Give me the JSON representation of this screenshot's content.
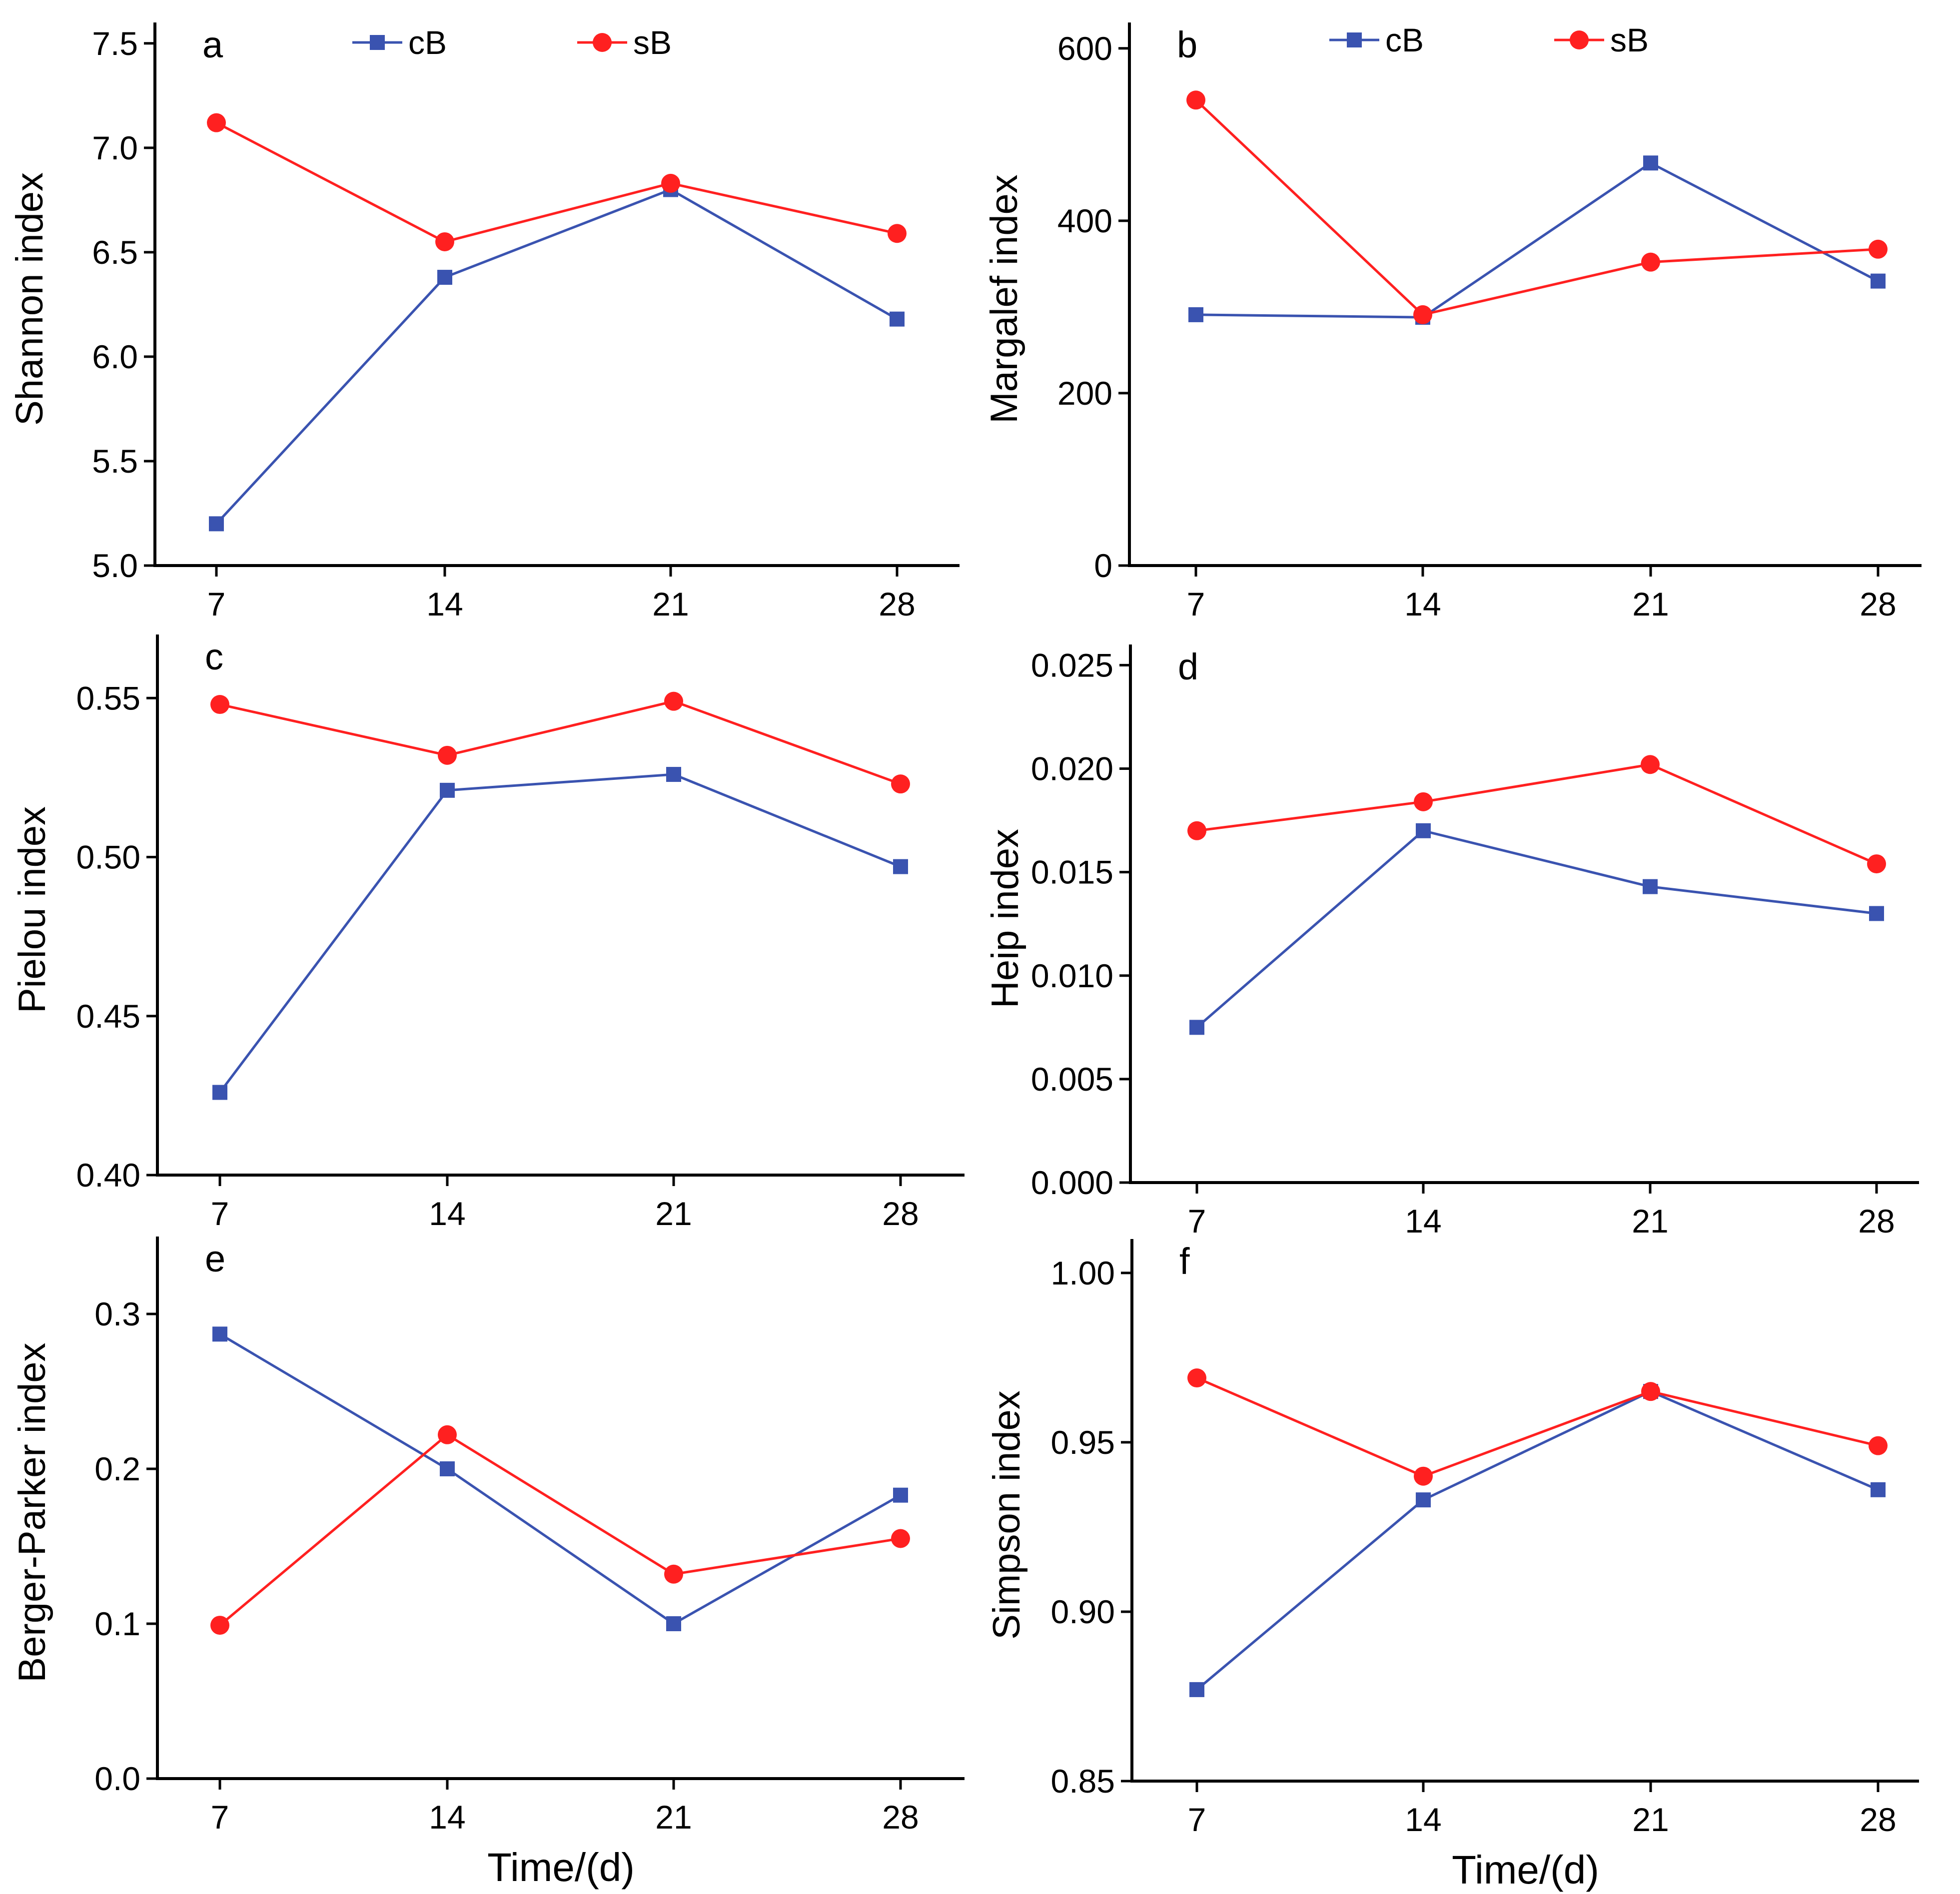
{
  "figure": {
    "series_colors": {
      "cB": "#3a53b0",
      "sB": "#ff2020"
    },
    "axis_color": "#000000"
  },
  "chart_data": [
    {
      "panel": "a",
      "type": "line",
      "ylabel": "Shannon index",
      "xlabel": "",
      "x": [
        7,
        14,
        21,
        28
      ],
      "xticks": [
        "7",
        "14",
        "21",
        "28"
      ],
      "ylim": [
        5.0,
        7.6
      ],
      "yticks": [
        "5.0",
        "5.5",
        "6.0",
        "6.5",
        "7.0",
        "7.5"
      ],
      "yticks_values": [
        5.0,
        5.5,
        6.0,
        6.5,
        7.0,
        7.5
      ],
      "legend": [
        "cB",
        "sB"
      ],
      "legend_position": "top",
      "series": [
        {
          "name": "cB",
          "marker": "square",
          "values": [
            5.2,
            6.38,
            6.8,
            6.18
          ]
        },
        {
          "name": "sB",
          "marker": "circle",
          "values": [
            7.12,
            6.55,
            6.83,
            6.59
          ]
        }
      ]
    },
    {
      "panel": "b",
      "type": "line",
      "ylabel": "Margalef index",
      "xlabel": "",
      "x": [
        7,
        14,
        21,
        28
      ],
      "xticks": [
        "7",
        "14",
        "21",
        "28"
      ],
      "ylim": [
        0,
        630
      ],
      "yticks": [
        "0",
        "200",
        "400",
        "600"
      ],
      "yticks_values": [
        0,
        200,
        400,
        600
      ],
      "legend": [
        "cB",
        "sB"
      ],
      "legend_position": "top",
      "series": [
        {
          "name": "cB",
          "marker": "square",
          "values": [
            291,
            288,
            467,
            330
          ]
        },
        {
          "name": "sB",
          "marker": "circle",
          "values": [
            540,
            291,
            352,
            367
          ]
        }
      ]
    },
    {
      "panel": "c",
      "type": "line",
      "ylabel": "Pielou index",
      "xlabel": "",
      "x": [
        7,
        14,
        21,
        28
      ],
      "xticks": [
        "7",
        "14",
        "21",
        "28"
      ],
      "ylim": [
        0.4,
        0.57
      ],
      "yticks": [
        "0.40",
        "0.45",
        "0.50",
        "0.55"
      ],
      "yticks_values": [
        0.4,
        0.45,
        0.5,
        0.55
      ],
      "series": [
        {
          "name": "cB",
          "marker": "square",
          "values": [
            0.426,
            0.521,
            0.526,
            0.497
          ]
        },
        {
          "name": "sB",
          "marker": "circle",
          "values": [
            0.548,
            0.532,
            0.549,
            0.523
          ]
        }
      ]
    },
    {
      "panel": "d",
      "type": "line",
      "ylabel": "Heip index",
      "xlabel": "",
      "x": [
        7,
        14,
        21,
        28
      ],
      "xticks": [
        "7",
        "14",
        "21",
        "28"
      ],
      "ylim": [
        0,
        0.026
      ],
      "yticks": [
        "0.000",
        "0.005",
        "0.010",
        "0.015",
        "0.020",
        "0.025"
      ],
      "yticks_values": [
        0.0,
        0.005,
        0.01,
        0.015,
        0.02,
        0.025
      ],
      "series": [
        {
          "name": "cB",
          "marker": "square",
          "values": [
            0.0075,
            0.017,
            0.0143,
            0.013
          ]
        },
        {
          "name": "sB",
          "marker": "circle",
          "values": [
            0.017,
            0.0184,
            0.0202,
            0.0154
          ]
        }
      ]
    },
    {
      "panel": "e",
      "type": "line",
      "ylabel": "Berger-Parker index",
      "xlabel": "Time/(d)",
      "x": [
        7,
        14,
        21,
        28
      ],
      "xticks": [
        "7",
        "14",
        "21",
        "28"
      ],
      "ylim": [
        0,
        0.35
      ],
      "yticks": [
        "0.0",
        "0.1",
        "0.2",
        "0.3"
      ],
      "yticks_values": [
        0.0,
        0.1,
        0.2,
        0.3
      ],
      "series": [
        {
          "name": "cB",
          "marker": "square",
          "values": [
            0.287,
            0.2,
            0.1,
            0.183
          ]
        },
        {
          "name": "sB",
          "marker": "circle",
          "values": [
            0.099,
            0.222,
            0.132,
            0.155
          ]
        }
      ]
    },
    {
      "panel": "f",
      "type": "line",
      "ylabel": "Simpson index",
      "xlabel": "Time/(d)",
      "x": [
        7,
        14,
        21,
        28
      ],
      "xticks": [
        "7",
        "14",
        "21",
        "28"
      ],
      "ylim": [
        0.85,
        1.01
      ],
      "yticks": [
        "0.85",
        "0.90",
        "0.95",
        "1.00"
      ],
      "yticks_values": [
        0.85,
        0.9,
        0.95,
        1.0
      ],
      "series": [
        {
          "name": "cB",
          "marker": "square",
          "values": [
            0.877,
            0.933,
            0.965,
            0.936
          ]
        },
        {
          "name": "sB",
          "marker": "circle",
          "values": [
            0.969,
            0.94,
            0.965,
            0.949
          ]
        }
      ]
    }
  ]
}
